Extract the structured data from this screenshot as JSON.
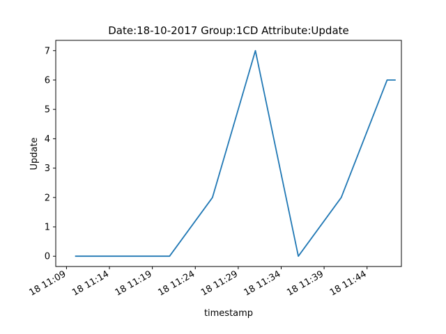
{
  "chart_data": {
    "type": "line",
    "title": "Date:18-10-2017  Group:1CD Attribute:Update",
    "xlabel": "timestamp",
    "ylabel": "Update",
    "x_ticks": [
      "18 11:09",
      "18 11:14",
      "18 11:19",
      "18 11:24",
      "18 11:29",
      "18 11:34",
      "18 11:39",
      "18 11:44"
    ],
    "y_ticks": [
      "0",
      "1",
      "2",
      "3",
      "4",
      "5",
      "6",
      "7"
    ],
    "xlim": [
      "2017-10-18 11:07:45",
      "2017-10-18 11:48:00"
    ],
    "ylim": [
      -0.35,
      7.35
    ],
    "grid": false,
    "series": [
      {
        "color": "#1f77b4",
        "x": [
          "2017-10-18 11:10:00",
          "2017-10-18 11:21:00",
          "2017-10-18 11:26:00",
          "2017-10-18 11:31:00",
          "2017-10-18 11:36:00",
          "2017-10-18 11:41:00",
          "2017-10-18 11:46:20",
          "2017-10-18 11:47:20"
        ],
        "values": [
          0,
          0,
          2,
          7,
          0,
          2,
          6,
          6
        ]
      }
    ]
  }
}
